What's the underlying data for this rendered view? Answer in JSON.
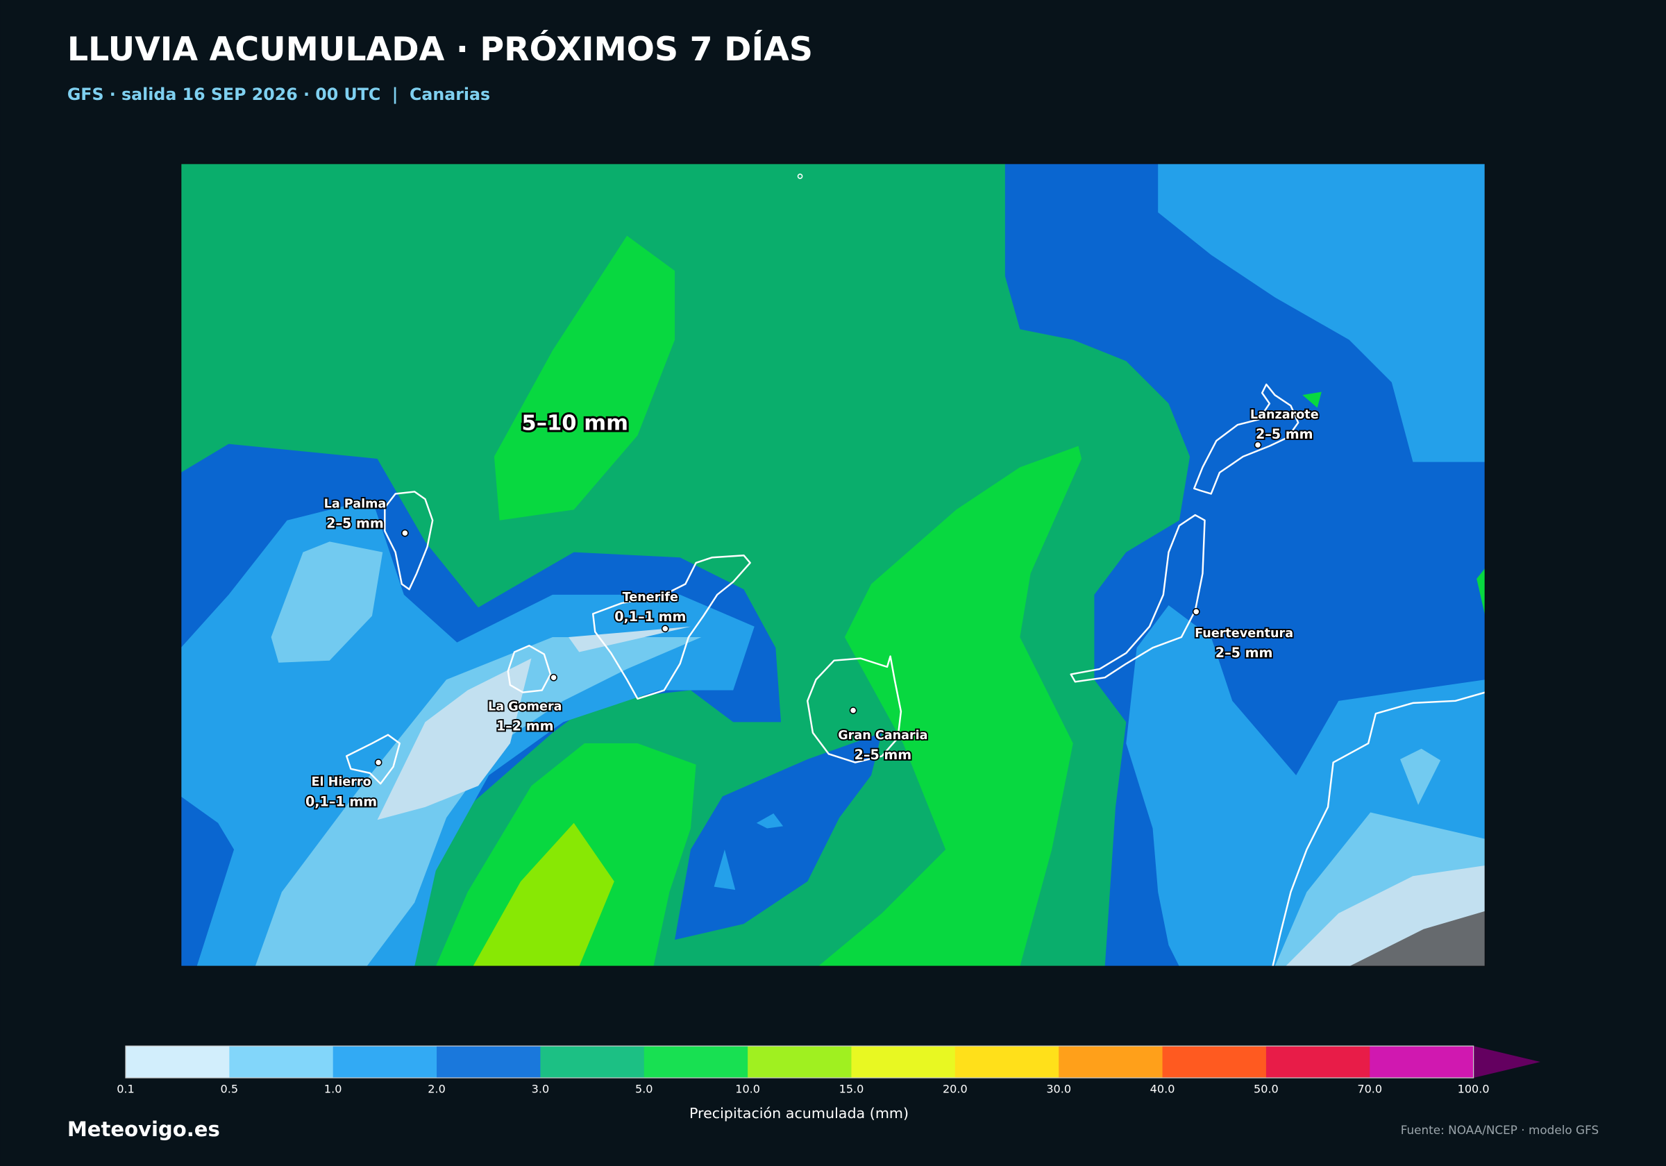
{
  "header": {
    "title": "LLUVIA ACUMULADA · PRÓXIMOS 7 DÍAS",
    "subtitle": "GFS · salida 16 SEP 2026 · 00 UTC  |  Canarias"
  },
  "map": {
    "region_label": "5–10 mm",
    "labels": [
      {
        "name": "La Palma",
        "amount": "2–5 mm"
      },
      {
        "name": "Tenerife",
        "amount": "0,1–1 mm"
      },
      {
        "name": "La Gomera",
        "amount": "1–2 mm"
      },
      {
        "name": "El Hierro",
        "amount": "0,1–1 mm"
      },
      {
        "name": "Gran Canaria",
        "amount": "2–5 mm"
      },
      {
        "name": "Lanzarote",
        "amount": "2–5 mm"
      },
      {
        "name": "Fuerteventura",
        "amount": "2–5 mm"
      }
    ]
  },
  "colorbar": {
    "label": "Precipitación acumulada (mm)",
    "ticks": [
      "0.1",
      "0.5",
      "1.0",
      "2.0",
      "3.0",
      "5.0",
      "10.0",
      "15.0",
      "20.0",
      "30.0",
      "40.0",
      "50.0",
      "70.0",
      "100.0"
    ],
    "colors": [
      "#d2eefc",
      "#82d6fa",
      "#32aaf4",
      "#1a78dc",
      "#1cc084",
      "#18e052",
      "#a0f020",
      "#e8f822",
      "#ffe01a",
      "#ffa01a",
      "#ff5a20",
      "#e81c48",
      "#d018b0"
    ],
    "extend_color": "#640060"
  },
  "footer": {
    "brand": "Meteovigo.es",
    "source": "Fuente: NOAA/NCEP · modelo GFS"
  }
}
